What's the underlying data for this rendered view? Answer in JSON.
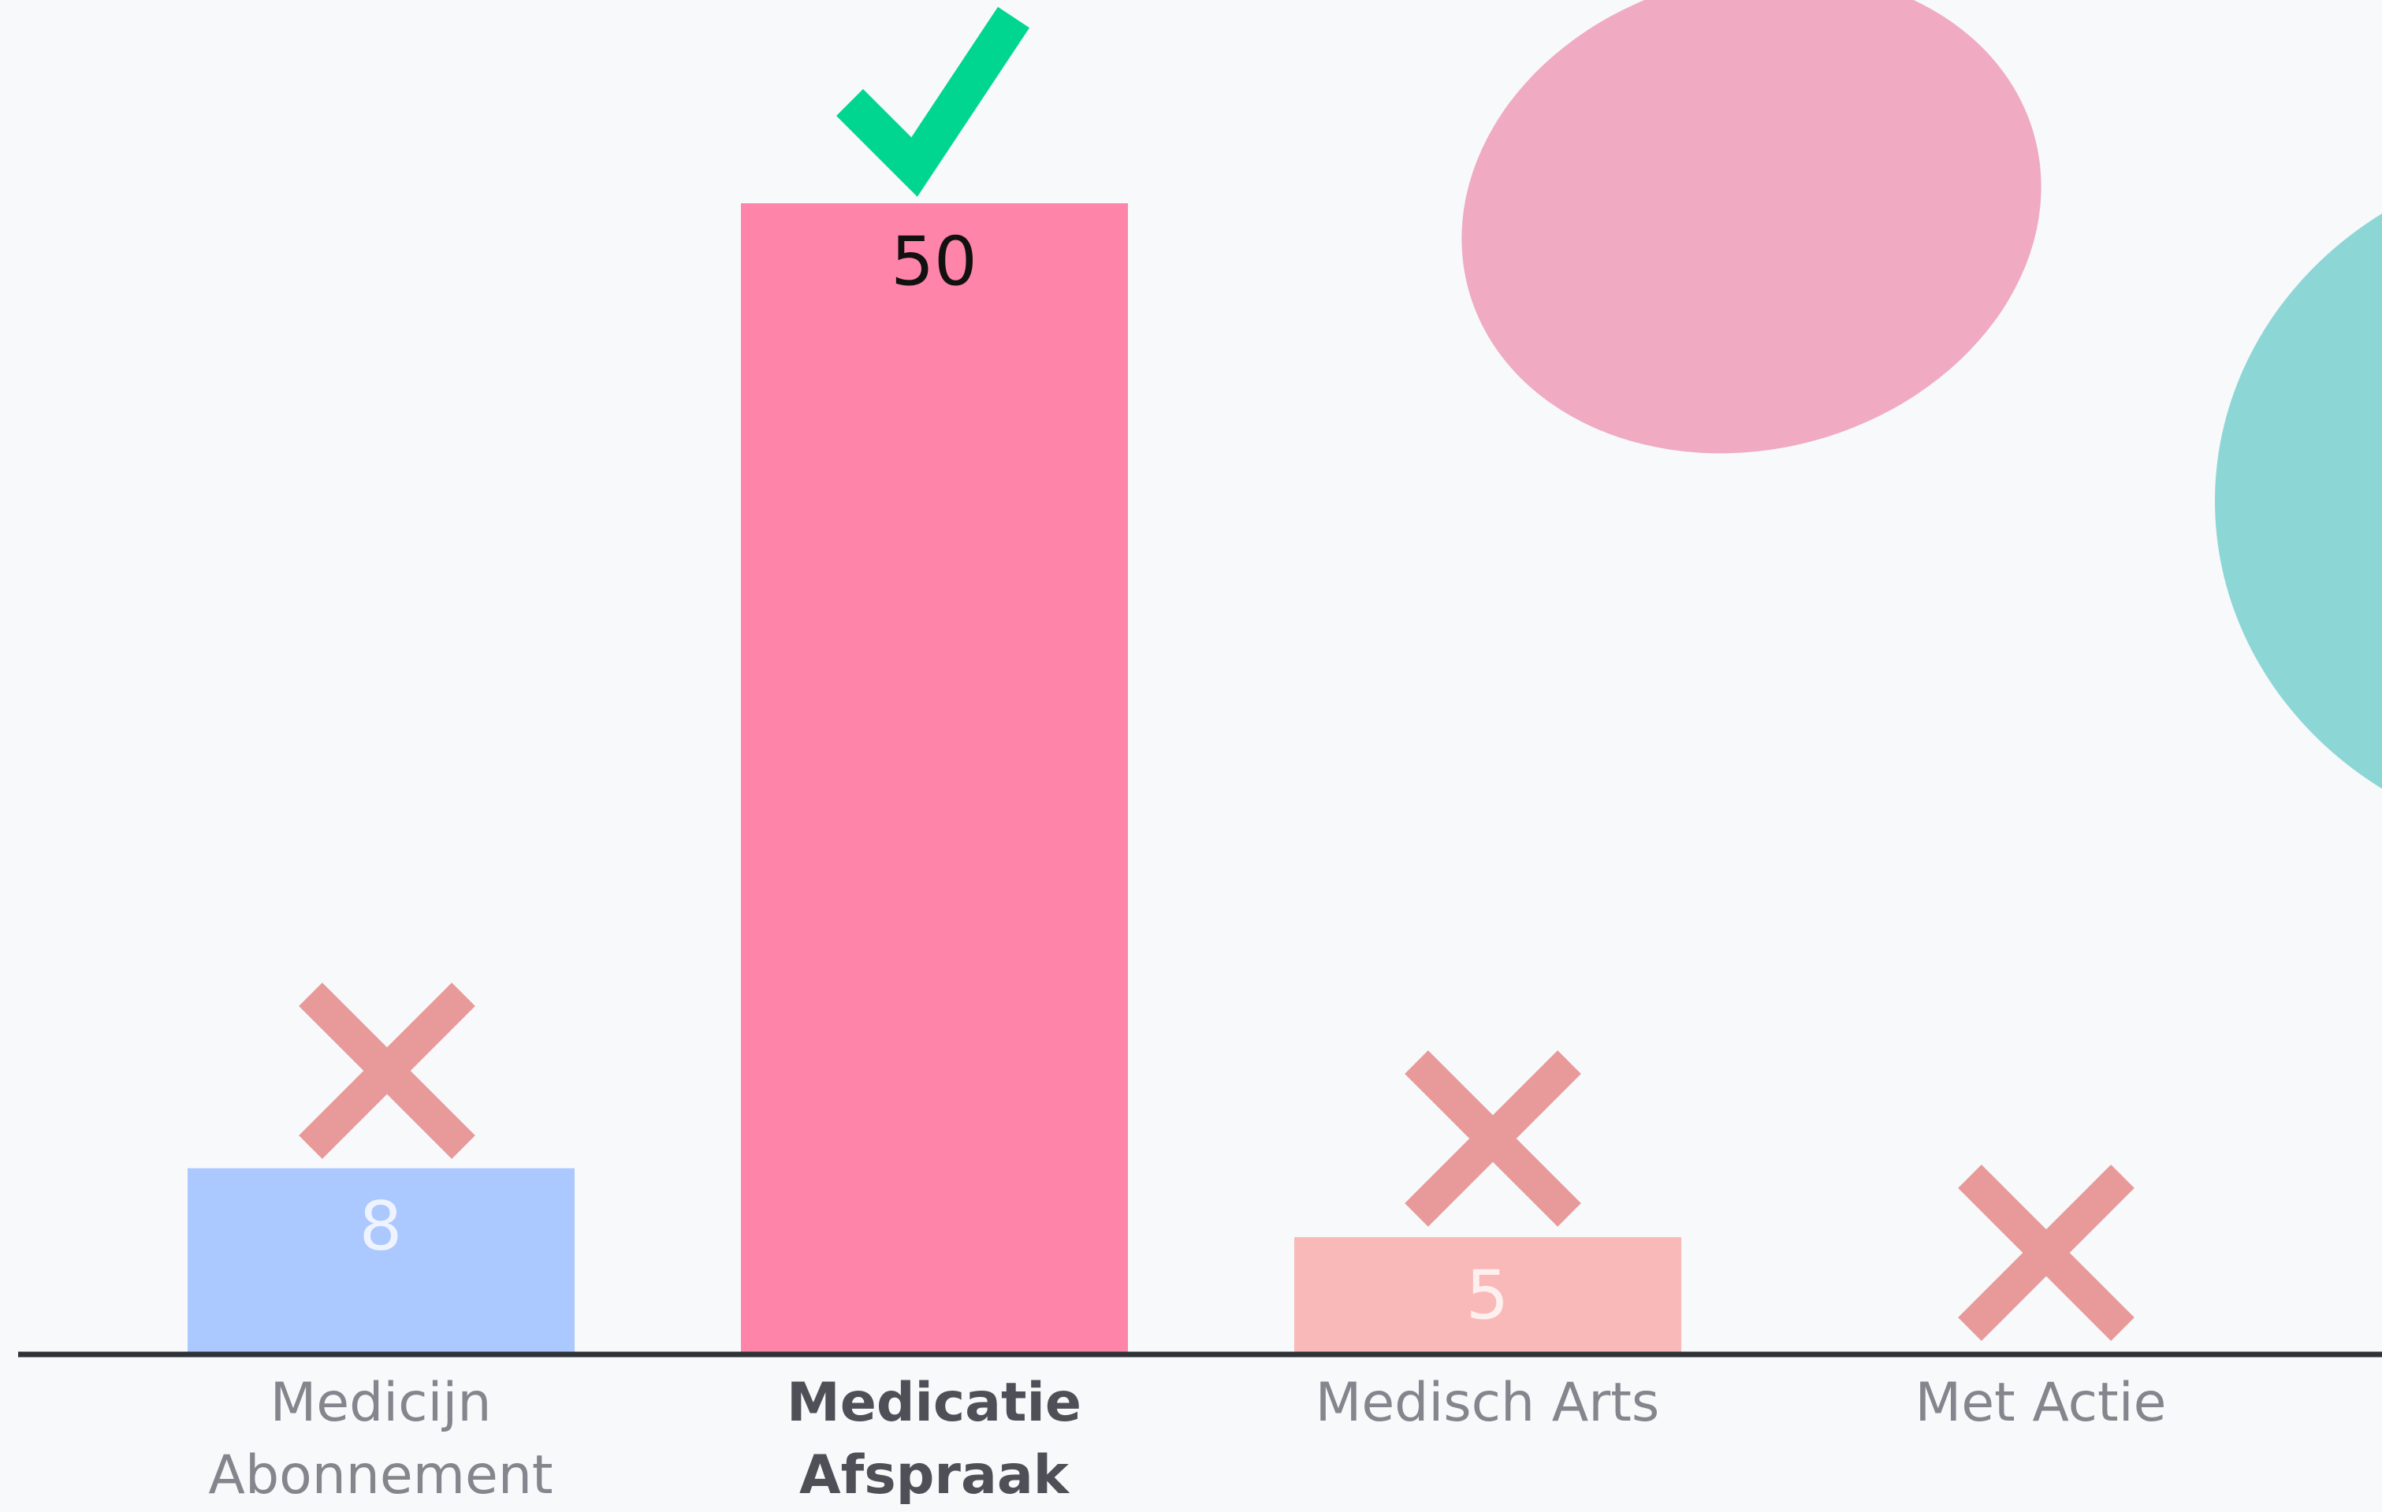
{
  "chart_data": {
    "type": "bar",
    "categories": [
      "Medicijn Abonnement",
      "Medicatie Afspraak",
      "Medisch Arts",
      "Met Actie"
    ],
    "values": [
      8,
      50,
      5,
      0
    ],
    "colors": [
      "#abc8ff",
      "#ff84aa",
      "#f9b9b9",
      "#f9b9b9"
    ],
    "label_colors": [
      "#eef3ff",
      "#111111",
      "#fff0f0",
      "#fff0f0"
    ],
    "ylim": [
      0,
      50
    ]
  }
}
